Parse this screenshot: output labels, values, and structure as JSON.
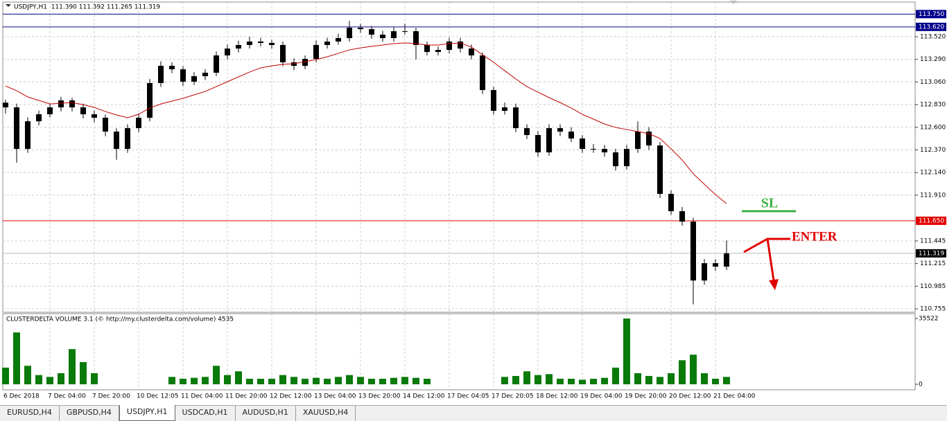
{
  "header": {
    "symbol_info": "USDJPY,H1  111.390 111.392 111.265 111.319"
  },
  "chart_data": {
    "type": "candlestick",
    "ohlc": [
      [
        112.85,
        112.88,
        112.74,
        112.802
      ],
      [
        112.802,
        112.84,
        112.24,
        112.38
      ],
      [
        112.38,
        112.7,
        112.34,
        112.661
      ],
      [
        112.661,
        112.77,
        112.62,
        112.732
      ],
      [
        112.732,
        112.84,
        112.7,
        112.802
      ],
      [
        112.802,
        112.91,
        112.76,
        112.873
      ],
      [
        112.873,
        112.9,
        112.76,
        112.802
      ],
      [
        112.802,
        112.84,
        112.69,
        112.732
      ],
      [
        112.732,
        112.77,
        112.65,
        112.697
      ],
      [
        112.697,
        112.73,
        112.51,
        112.556
      ],
      [
        112.556,
        112.59,
        112.27,
        112.38
      ],
      [
        112.38,
        112.63,
        112.34,
        112.591
      ],
      [
        112.591,
        112.74,
        112.55,
        112.697
      ],
      [
        112.697,
        113.09,
        112.66,
        113.049
      ],
      [
        113.049,
        113.27,
        113.01,
        113.224
      ],
      [
        113.224,
        113.26,
        113.15,
        113.189
      ],
      [
        113.189,
        113.22,
        113.02,
        113.063
      ],
      [
        113.063,
        113.16,
        113.03,
        113.119
      ],
      [
        113.119,
        113.19,
        113.08,
        113.154
      ],
      [
        113.154,
        113.37,
        113.12,
        113.33
      ],
      [
        113.33,
        113.44,
        113.29,
        113.4
      ],
      [
        113.4,
        113.48,
        113.36,
        113.436
      ],
      [
        113.436,
        113.52,
        113.4,
        113.471
      ],
      [
        113.471,
        113.51,
        113.42,
        113.457
      ],
      [
        113.457,
        113.49,
        113.4,
        113.436
      ],
      [
        113.436,
        113.47,
        113.22,
        113.26
      ],
      [
        113.26,
        113.3,
        113.18,
        113.224
      ],
      [
        113.224,
        113.33,
        113.19,
        113.295
      ],
      [
        113.295,
        113.48,
        113.26,
        113.436
      ],
      [
        113.436,
        113.51,
        113.4,
        113.471
      ],
      [
        113.471,
        113.55,
        113.44,
        113.506
      ],
      [
        113.506,
        113.68,
        113.47,
        113.612
      ],
      [
        113.612,
        113.65,
        113.56,
        113.597
      ],
      [
        113.597,
        113.63,
        113.5,
        113.541
      ],
      [
        113.541,
        113.58,
        113.47,
        113.506
      ],
      [
        113.506,
        113.62,
        113.47,
        113.576
      ],
      [
        113.576,
        113.65,
        113.54,
        113.576
      ],
      [
        113.576,
        113.61,
        113.29,
        113.436
      ],
      [
        113.436,
        113.47,
        113.33,
        113.365
      ],
      [
        113.365,
        113.42,
        113.33,
        113.386
      ],
      [
        113.386,
        113.51,
        113.35,
        113.471
      ],
      [
        113.471,
        113.51,
        113.36,
        113.4
      ],
      [
        113.4,
        113.44,
        113.29,
        113.33
      ],
      [
        113.33,
        113.36,
        112.94,
        112.978
      ],
      [
        112.978,
        113.01,
        112.73,
        112.767
      ],
      [
        112.767,
        112.85,
        112.73,
        112.802
      ],
      [
        112.802,
        112.84,
        112.55,
        112.591
      ],
      [
        112.591,
        112.63,
        112.48,
        112.521
      ],
      [
        112.521,
        112.56,
        112.3,
        112.345
      ],
      [
        112.345,
        112.63,
        112.31,
        112.591
      ],
      [
        112.591,
        112.63,
        112.51,
        112.556
      ],
      [
        112.556,
        112.6,
        112.45,
        112.486
      ],
      [
        112.486,
        112.52,
        112.34,
        112.38
      ],
      [
        112.38,
        112.43,
        112.34,
        112.38
      ],
      [
        112.38,
        112.42,
        112.3,
        112.345
      ],
      [
        112.345,
        112.38,
        112.16,
        112.204
      ],
      [
        112.204,
        112.42,
        112.17,
        112.38
      ],
      [
        112.38,
        112.66,
        112.34,
        112.556
      ],
      [
        112.556,
        112.6,
        112.37,
        112.415
      ],
      [
        112.415,
        112.45,
        111.88,
        111.923
      ],
      [
        111.923,
        111.96,
        111.71,
        111.747
      ],
      [
        111.747,
        111.79,
        111.6,
        111.641
      ],
      [
        111.641,
        111.68,
        110.8,
        111.043
      ],
      [
        111.043,
        111.26,
        111.0,
        111.219
      ],
      [
        111.219,
        111.26,
        111.14,
        111.184
      ],
      [
        111.184,
        111.45,
        111.15,
        111.319
      ]
    ],
    "categories": [
      "6 Dec 2018",
      null,
      null,
      null,
      "7 Dec 04:00",
      null,
      null,
      null,
      "7 Dec 20:00",
      null,
      null,
      null,
      "10 Dec 12:05",
      null,
      null,
      null,
      "11 Dec 04:00",
      null,
      null,
      null,
      "11 Dec 20:00",
      null,
      null,
      null,
      "12 Dec 12:00",
      null,
      null,
      null,
      "13 Dec 04:00",
      null,
      null,
      null,
      "13 Dec 20:00",
      null,
      null,
      null,
      "14 Dec 12:00",
      null,
      null,
      null,
      "17 Dec 04:05",
      null,
      null,
      null,
      "17 Dec 20:05",
      null,
      null,
      null,
      "18 Dec 12:00",
      null,
      null,
      null,
      "19 Dec 04:00",
      null,
      null,
      null,
      "19 Dec 20:00",
      null,
      null,
      null,
      "20 Dec 12:00",
      null,
      null,
      null,
      "21 Dec 04:00",
      null
    ],
    "ylim": [
      110.727,
      113.872
    ],
    "yticks": [
      {
        "value": 113.52,
        "label": "113.520"
      },
      {
        "value": 113.29,
        "label": "113.290"
      },
      {
        "value": 113.06,
        "label": "113.060"
      },
      {
        "value": 112.83,
        "label": "112.830"
      },
      {
        "value": 112.6,
        "label": "112.600"
      },
      {
        "value": 112.37,
        "label": "112.370"
      },
      {
        "value": 112.14,
        "label": "112.140"
      },
      {
        "value": 111.91,
        "label": "111.910"
      },
      {
        "value": 111.445,
        "label": "111.445"
      },
      {
        "value": 111.215,
        "label": "111.215"
      },
      {
        "value": 110.985,
        "label": "110.985"
      },
      {
        "value": 110.755,
        "label": "110.755"
      }
    ],
    "grid": true,
    "candle_color": "#000000",
    "moving_average": {
      "color": "#c00000",
      "values": [
        113.02,
        112.971,
        112.908,
        112.873,
        112.837,
        112.844,
        112.851,
        112.83,
        112.802,
        112.76,
        112.725,
        112.697,
        112.732,
        112.795,
        112.837,
        112.866,
        112.894,
        112.929,
        112.964,
        113.013,
        113.063,
        113.112,
        113.161,
        113.203,
        113.224,
        113.239,
        113.246,
        113.267,
        113.288,
        113.316,
        113.351,
        113.386,
        113.407,
        113.422,
        113.436,
        113.45,
        113.457,
        113.45,
        113.436,
        113.436,
        113.45,
        113.457,
        113.415,
        113.337,
        113.26,
        113.175,
        113.091,
        113.013,
        112.957,
        112.901,
        112.851,
        112.795,
        112.732,
        112.683,
        112.633,
        112.598,
        112.577,
        112.556,
        112.535,
        112.486,
        112.38,
        112.267,
        112.127,
        112.021,
        111.916,
        111.824
      ]
    },
    "levels": [
      {
        "value": 113.75,
        "label": "113.750",
        "color": "#00008b"
      },
      {
        "value": 113.62,
        "label": "113.620",
        "color": "#00008b"
      },
      {
        "value": 111.65,
        "label": "111.650",
        "color": "#e00000"
      },
      {
        "value": 111.319,
        "label": "111.319",
        "color": "#000000"
      }
    ],
    "annotations": [
      {
        "text": "SL",
        "color": "#3cb043"
      },
      {
        "text": "ENTER",
        "color": "#e00000"
      }
    ],
    "volume": {
      "type": "bar",
      "title": "CLUSTERDELTA VOLUME 3.1 (© http://my.clusterdelta.com/volume) 4535",
      "color": "#0a7a0a",
      "ylim": [
        0,
        35522
      ],
      "yticks": [
        35522,
        0
      ],
      "values": [
        9000,
        28000,
        10000,
        5000,
        4000,
        6000,
        19000,
        12000,
        6000,
        0,
        0,
        0,
        0,
        0,
        0,
        4000,
        3000,
        3500,
        4000,
        10000,
        5000,
        7000,
        3000,
        3000,
        3000,
        5000,
        4000,
        3000,
        3500,
        3000,
        4000,
        5000,
        4000,
        3000,
        3000,
        3500,
        4000,
        3500,
        3000,
        0,
        0,
        0,
        0,
        0,
        0,
        4000,
        4500,
        7000,
        5000,
        5500,
        3000,
        3000,
        2500,
        3000,
        3500,
        9000,
        35522,
        6000,
        4500,
        4000,
        6000,
        13000,
        16000,
        6000,
        3000,
        4000
      ]
    }
  },
  "tabs": [
    "EURUSD,H4",
    "GBPUSD,H4",
    "USDJPY,H1",
    "USDCAD,H1",
    "AUDUSD,H1",
    "XAUUSD,H4"
  ],
  "active_tab": 2
}
